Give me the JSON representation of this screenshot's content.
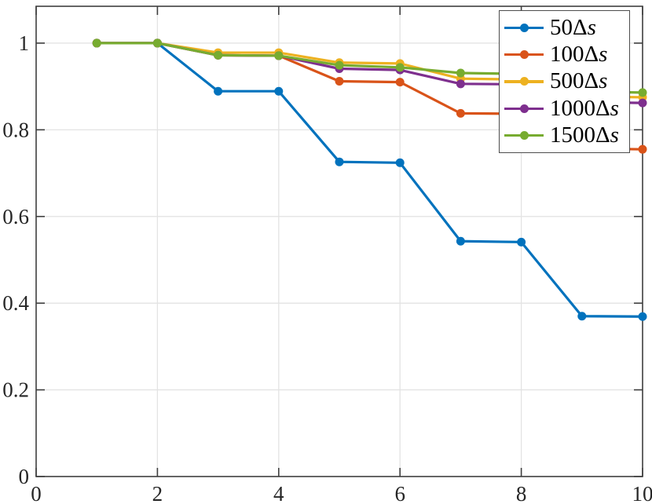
{
  "figure": {
    "background": "#ffffff"
  },
  "chart_data": {
    "type": "line",
    "title": "",
    "xlabel": "",
    "ylabel": "",
    "xlim": [
      0,
      10
    ],
    "ylim": [
      0,
      1.085
    ],
    "x_ticks": [
      0,
      2,
      4,
      6,
      8,
      10
    ],
    "y_ticks": [
      0,
      0.2,
      0.4,
      0.6,
      0.8,
      1
    ],
    "grid": true,
    "legend_position": "top-right",
    "marker": "circle",
    "x": [
      1,
      2,
      3,
      4,
      5,
      6,
      7,
      8,
      9,
      10
    ],
    "series": [
      {
        "name": "50Δs",
        "color": "#0072BD",
        "values": [
          1.0,
          1.0,
          0.889,
          0.889,
          0.726,
          0.724,
          0.543,
          0.541,
          0.37,
          0.369
        ]
      },
      {
        "name": "100Δs",
        "color": "#D95319",
        "values": [
          1.0,
          1.0,
          0.972,
          0.971,
          0.912,
          0.91,
          0.838,
          0.837,
          0.757,
          0.755
        ]
      },
      {
        "name": "500Δs",
        "color": "#EDB120",
        "values": [
          1.0,
          1.0,
          0.978,
          0.978,
          0.955,
          0.953,
          0.918,
          0.916,
          0.877,
          0.875
        ]
      },
      {
        "name": "1000Δs",
        "color": "#7E2F8E",
        "values": [
          1.0,
          1.0,
          0.972,
          0.971,
          0.941,
          0.938,
          0.906,
          0.905,
          0.864,
          0.862
        ]
      },
      {
        "name": "1500Δs",
        "color": "#77AC30",
        "values": [
          1.0,
          1.0,
          0.972,
          0.971,
          0.949,
          0.944,
          0.931,
          0.929,
          0.888,
          0.886
        ]
      }
    ],
    "colors": {
      "frame": "#3f3f3f",
      "tick_label": "#262626",
      "grid": "#e3e3e3",
      "legend_border": "#4d4d4d",
      "background": "#ffffff"
    }
  }
}
